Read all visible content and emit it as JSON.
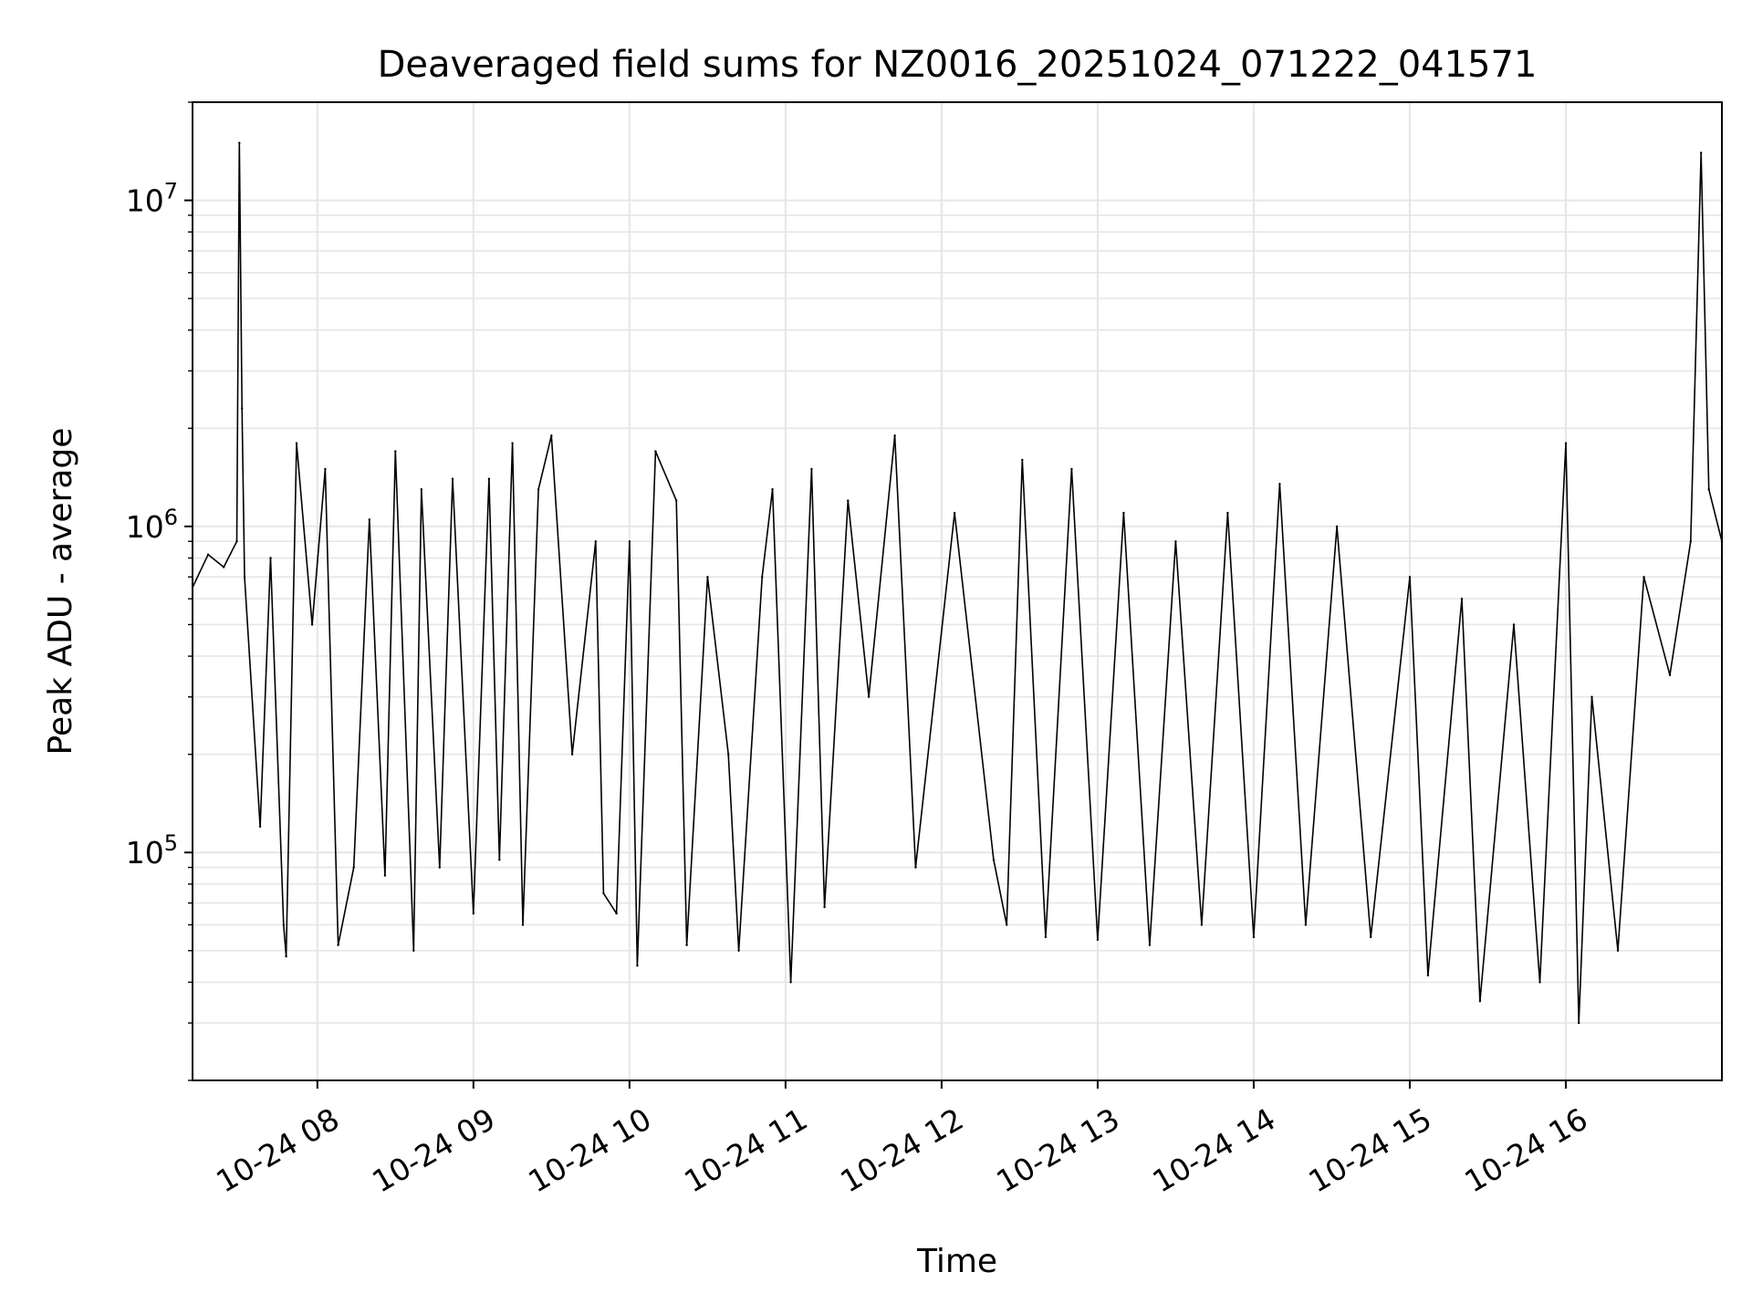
{
  "chart_data": {
    "type": "line",
    "title": "Deaveraged field sums for NZ0016_20251024_071222_041571",
    "xlabel": "Time",
    "ylabel": "Peak ADU - average",
    "yscale": "log",
    "grid": true,
    "grid_minor": true,
    "xlim": [
      "2025-10-24 07:12",
      "2025-10-24 17:00"
    ],
    "ylim": [
      20000,
      20000000
    ],
    "x_ticks": [
      "2025-10-24 08:00",
      "2025-10-24 09:00",
      "2025-10-24 10:00",
      "2025-10-24 11:00",
      "2025-10-24 12:00",
      "2025-10-24 13:00",
      "2025-10-24 14:00",
      "2025-10-24 15:00",
      "2025-10-24 16:00"
    ],
    "x_tick_labels": [
      "10-24 08",
      "10-24 09",
      "10-24 10",
      "10-24 11",
      "10-24 12",
      "10-24 13",
      "10-24 14",
      "10-24 15",
      "10-24 16"
    ],
    "y_ticks": [
      {
        "value": 100000,
        "base": "10",
        "exp": "5"
      },
      {
        "value": 1000000,
        "base": "10",
        "exp": "6"
      },
      {
        "value": 10000000,
        "base": "10",
        "exp": "7"
      }
    ],
    "series": [
      {
        "color": "#000000",
        "points": [
          [
            "2025-10-24 07:12",
            650000
          ],
          [
            "2025-10-24 07:18",
            820000
          ],
          [
            "2025-10-24 07:24",
            750000
          ],
          [
            "2025-10-24 07:29",
            900000
          ],
          [
            "2025-10-24 07:30",
            15000000
          ],
          [
            "2025-10-24 07:31",
            2300000
          ],
          [
            "2025-10-24 07:32",
            700000
          ],
          [
            "2025-10-24 07:38",
            120000
          ],
          [
            "2025-10-24 07:42",
            800000
          ],
          [
            "2025-10-24 07:47",
            60000
          ],
          [
            "2025-10-24 07:48",
            48000
          ],
          [
            "2025-10-24 07:52",
            1800000
          ],
          [
            "2025-10-24 07:58",
            500000
          ],
          [
            "2025-10-24 08:03",
            1500000
          ],
          [
            "2025-10-24 08:08",
            52000
          ],
          [
            "2025-10-24 08:14",
            90000
          ],
          [
            "2025-10-24 08:20",
            1050000
          ],
          [
            "2025-10-24 08:26",
            85000
          ],
          [
            "2025-10-24 08:30",
            1700000
          ],
          [
            "2025-10-24 08:37",
            50000
          ],
          [
            "2025-10-24 08:40",
            1300000
          ],
          [
            "2025-10-24 08:47",
            90000
          ],
          [
            "2025-10-24 08:52",
            1400000
          ],
          [
            "2025-10-24 09:00",
            65000
          ],
          [
            "2025-10-24 09:06",
            1400000
          ],
          [
            "2025-10-24 09:10",
            95000
          ],
          [
            "2025-10-24 09:15",
            1800000
          ],
          [
            "2025-10-24 09:19",
            60000
          ],
          [
            "2025-10-24 09:25",
            1300000
          ],
          [
            "2025-10-24 09:30",
            1900000
          ],
          [
            "2025-10-24 09:38",
            200000
          ],
          [
            "2025-10-24 09:47",
            900000
          ],
          [
            "2025-10-24 09:50",
            75000
          ],
          [
            "2025-10-24 09:55",
            65000
          ],
          [
            "2025-10-24 10:00",
            900000
          ],
          [
            "2025-10-24 10:03",
            45000
          ],
          [
            "2025-10-24 10:10",
            1700000
          ],
          [
            "2025-10-24 10:18",
            1200000
          ],
          [
            "2025-10-24 10:22",
            52000
          ],
          [
            "2025-10-24 10:30",
            700000
          ],
          [
            "2025-10-24 10:38",
            200000
          ],
          [
            "2025-10-24 10:42",
            50000
          ],
          [
            "2025-10-24 10:51",
            700000
          ],
          [
            "2025-10-24 10:55",
            1300000
          ],
          [
            "2025-10-24 11:02",
            40000
          ],
          [
            "2025-10-24 11:10",
            1500000
          ],
          [
            "2025-10-24 11:15",
            68000
          ],
          [
            "2025-10-24 11:24",
            1200000
          ],
          [
            "2025-10-24 11:32",
            300000
          ],
          [
            "2025-10-24 11:42",
            1900000
          ],
          [
            "2025-10-24 11:50",
            90000
          ],
          [
            "2025-10-24 12:05",
            1100000
          ],
          [
            "2025-10-24 12:20",
            95000
          ],
          [
            "2025-10-24 12:25",
            60000
          ],
          [
            "2025-10-24 12:31",
            1600000
          ],
          [
            "2025-10-24 12:40",
            55000
          ],
          [
            "2025-10-24 12:50",
            1500000
          ],
          [
            "2025-10-24 13:00",
            54000
          ],
          [
            "2025-10-24 13:10",
            1100000
          ],
          [
            "2025-10-24 13:20",
            52000
          ],
          [
            "2025-10-24 13:30",
            900000
          ],
          [
            "2025-10-24 13:40",
            60000
          ],
          [
            "2025-10-24 13:50",
            1100000
          ],
          [
            "2025-10-24 14:00",
            55000
          ],
          [
            "2025-10-24 14:10",
            1350000
          ],
          [
            "2025-10-24 14:20",
            60000
          ],
          [
            "2025-10-24 14:32",
            1000000
          ],
          [
            "2025-10-24 14:45",
            55000
          ],
          [
            "2025-10-24 15:00",
            700000
          ],
          [
            "2025-10-24 15:07",
            42000
          ],
          [
            "2025-10-24 15:20",
            600000
          ],
          [
            "2025-10-24 15:27",
            35000
          ],
          [
            "2025-10-24 15:40",
            500000
          ],
          [
            "2025-10-24 15:50",
            40000
          ],
          [
            "2025-10-24 16:00",
            1800000
          ],
          [
            "2025-10-24 16:05",
            30000
          ],
          [
            "2025-10-24 16:10",
            300000
          ],
          [
            "2025-10-24 16:20",
            50000
          ],
          [
            "2025-10-24 16:30",
            700000
          ],
          [
            "2025-10-24 16:40",
            350000
          ],
          [
            "2025-10-24 16:48",
            900000
          ],
          [
            "2025-10-24 16:52",
            14000000
          ],
          [
            "2025-10-24 16:55",
            1300000
          ],
          [
            "2025-10-24 17:00",
            900000
          ]
        ]
      }
    ]
  }
}
